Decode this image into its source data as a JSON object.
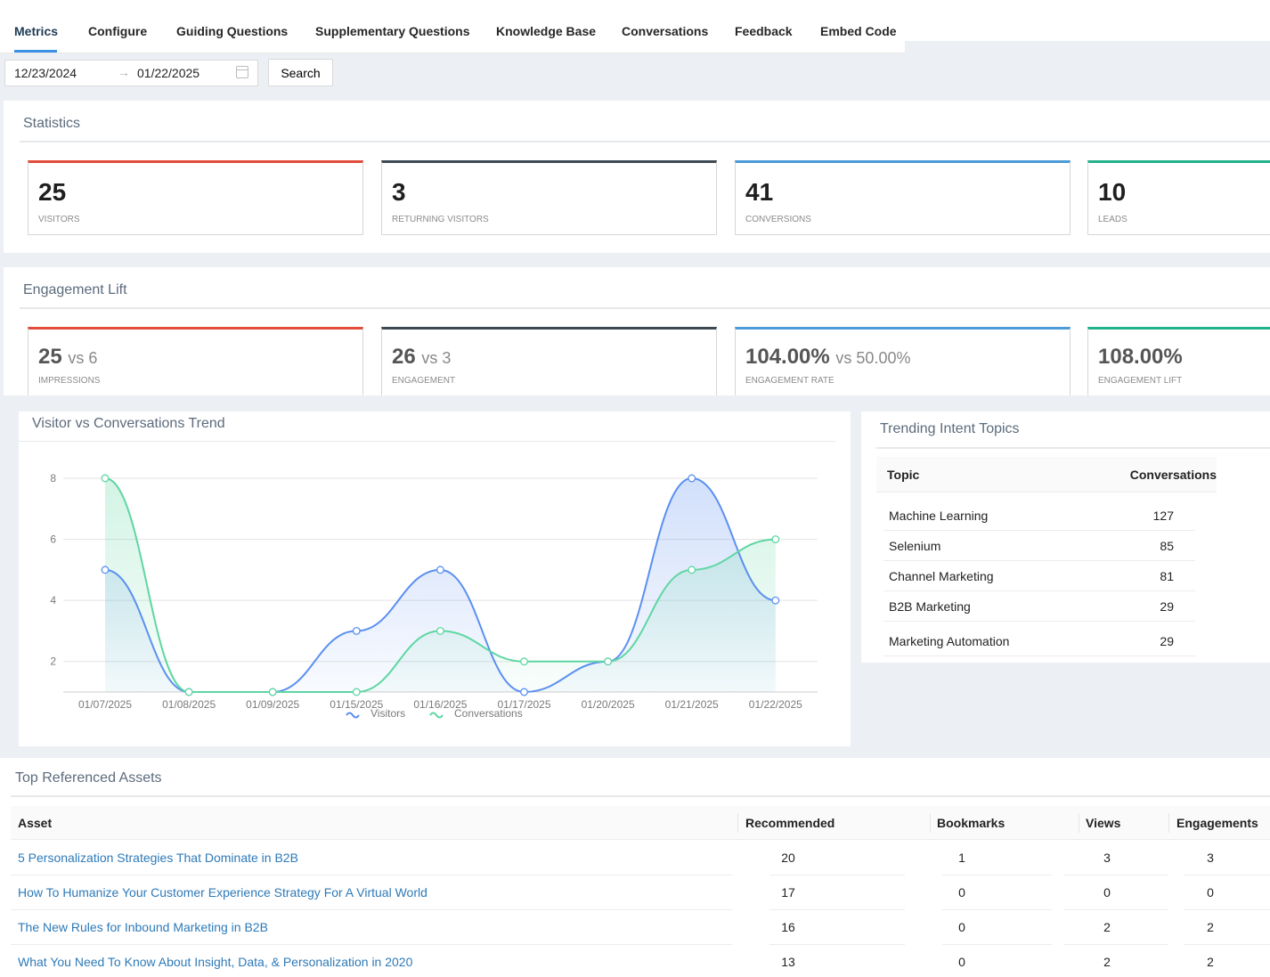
{
  "tabs": [
    {
      "label": "Metrics",
      "active": true
    },
    {
      "label": "Configure"
    },
    {
      "label": "Guiding Questions"
    },
    {
      "label": "Supplementary Questions"
    },
    {
      "label": "Knowledge Base"
    },
    {
      "label": "Conversations"
    },
    {
      "label": "Feedback"
    },
    {
      "label": "Embed Code"
    }
  ],
  "date_range": {
    "start": "12/23/2024",
    "arrow": "→",
    "end": "01/22/2025",
    "icon": "calendar-icon"
  },
  "search_button": "Search",
  "statistics": {
    "title": "Statistics",
    "cards": [
      {
        "value": "25",
        "label": "VISITORS",
        "color": "#e24c3a"
      },
      {
        "value": "3",
        "label": "RETURNING VISITORS",
        "color": "#3d4a54"
      },
      {
        "value": "41",
        "label": "CONVERSIONS",
        "color": "#4b9bd8"
      },
      {
        "value": "10",
        "label": "LEADS",
        "color": "#22b28a"
      }
    ]
  },
  "engagement_lift": {
    "title": "Engagement Lift",
    "cards": [
      {
        "value": "25",
        "vs": "vs 6",
        "label": "IMPRESSIONS",
        "color": "#e24c3a"
      },
      {
        "value": "26",
        "vs": "vs 3",
        "label": "ENGAGEMENT",
        "color": "#3d4a54"
      },
      {
        "value": "104.00%",
        "vs": "vs 50.00%",
        "label": "ENGAGEMENT RATE",
        "color": "#4b9bd8"
      },
      {
        "value": "108.00%",
        "vs": "",
        "label": "ENGAGEMENT LIFT",
        "color": "#22b28a"
      }
    ]
  },
  "trend": {
    "title": "Visitor vs Conversations Trend",
    "chart_data": {
      "type": "area",
      "categories": [
        "01/07/2025",
        "01/08/2025",
        "01/09/2025",
        "01/15/2025",
        "01/16/2025",
        "01/17/2025",
        "01/20/2025",
        "01/21/2025",
        "01/22/2025"
      ],
      "series": [
        {
          "name": "Visitors",
          "values": [
            5,
            1,
            1,
            3,
            5,
            1,
            2,
            8,
            4
          ],
          "color": "#5b8ff0"
        },
        {
          "name": "Conversations",
          "values": [
            8,
            1,
            1,
            1,
            3,
            2,
            2,
            5,
            6
          ],
          "color": "#5fd6a3"
        }
      ],
      "yticks": [
        2,
        4,
        6,
        8
      ],
      "ylim": [
        1,
        8
      ],
      "grid": true,
      "legend": "bottom"
    }
  },
  "topics": {
    "title": "Trending Intent Topics",
    "columns": [
      "Topic",
      "Conversations"
    ],
    "rows": [
      {
        "topic": "Machine Learning",
        "count": "127"
      },
      {
        "topic": "Selenium",
        "count": "85"
      },
      {
        "topic": "Channel Marketing",
        "count": "81"
      },
      {
        "topic": "B2B Marketing",
        "count": "29"
      },
      {
        "topic": "Marketing Automation",
        "count": "29"
      }
    ]
  },
  "assets": {
    "title": "Top Referenced Assets",
    "columns": [
      "Asset",
      "Recommended",
      "Bookmarks",
      "Views",
      "Engagements"
    ],
    "rows": [
      {
        "asset": "5 Personalization Strategies That Dominate in B2B",
        "recommended": "20",
        "bookmarks": "1",
        "views": "3",
        "engagements": "3"
      },
      {
        "asset": "How To Humanize Your Customer Experience Strategy For A Virtual World",
        "recommended": "17",
        "bookmarks": "0",
        "views": "0",
        "engagements": "0"
      },
      {
        "asset": "The New Rules for Inbound Marketing in B2B",
        "recommended": "16",
        "bookmarks": "0",
        "views": "2",
        "engagements": "2"
      },
      {
        "asset": "What You Need To Know About Insight, Data, & Personalization in 2020",
        "recommended": "13",
        "bookmarks": "0",
        "views": "2",
        "engagements": "2"
      }
    ]
  }
}
